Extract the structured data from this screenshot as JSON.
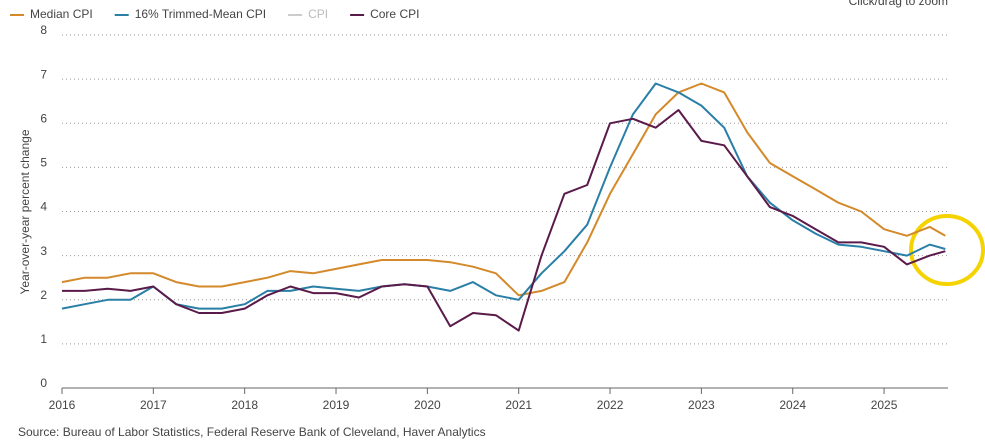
{
  "chart_data": {
    "type": "line",
    "zoom_hint": "Click/drag to zoom",
    "y_label": "Year-over-year percent change",
    "source": "Source: Bureau of Labor Statistics, Federal Reserve Bank of Cleveland, Haver Analytics",
    "x": [
      2016,
      2016.25,
      2016.5,
      2016.75,
      2017,
      2017.25,
      2017.5,
      2017.75,
      2018,
      2018.25,
      2018.5,
      2018.75,
      2019,
      2019.25,
      2019.5,
      2019.75,
      2020,
      2020.25,
      2020.5,
      2020.75,
      2021,
      2021.25,
      2021.5,
      2021.75,
      2022,
      2022.25,
      2022.5,
      2022.75,
      2023,
      2023.25,
      2023.5,
      2023.75,
      2024,
      2024.25,
      2024.5,
      2024.75,
      2025,
      2025.25,
      2025.5,
      2025.67
    ],
    "series": [
      {
        "name": "Median CPI",
        "color": "#d4892a",
        "values": [
          2.4,
          2.5,
          2.5,
          2.6,
          2.6,
          2.4,
          2.3,
          2.3,
          2.4,
          2.5,
          2.65,
          2.6,
          2.7,
          2.8,
          2.9,
          2.9,
          2.9,
          2.85,
          2.75,
          2.6,
          2.1,
          2.2,
          2.4,
          3.3,
          4.4,
          5.3,
          6.2,
          6.7,
          6.9,
          6.7,
          5.8,
          5.1,
          4.8,
          4.5,
          4.2,
          4.0,
          3.6,
          3.45,
          3.65,
          3.45
        ]
      },
      {
        "name": "16% Trimmed-Mean CPI",
        "color": "#2a7fa6",
        "values": [
          1.8,
          1.9,
          2.0,
          2.0,
          2.3,
          1.9,
          1.8,
          1.8,
          1.9,
          2.2,
          2.2,
          2.3,
          2.25,
          2.2,
          2.3,
          2.35,
          2.3,
          2.2,
          2.4,
          2.1,
          2.0,
          2.6,
          3.1,
          3.7,
          5.0,
          6.2,
          6.9,
          6.7,
          6.4,
          5.9,
          4.8,
          4.2,
          3.8,
          3.5,
          3.25,
          3.2,
          3.1,
          3.0,
          3.25,
          3.15
        ]
      },
      {
        "name": "CPI",
        "color": "#cccccc",
        "visible": false
      },
      {
        "name": "Core CPI",
        "color": "#5a1a4a",
        "values": [
          2.2,
          2.2,
          2.25,
          2.2,
          2.3,
          1.9,
          1.7,
          1.7,
          1.8,
          2.1,
          2.3,
          2.15,
          2.15,
          2.05,
          2.3,
          2.35,
          2.3,
          1.4,
          1.7,
          1.65,
          1.3,
          3.0,
          4.4,
          4.6,
          6.0,
          6.1,
          5.9,
          6.3,
          5.6,
          5.5,
          4.8,
          4.1,
          3.9,
          3.6,
          3.3,
          3.3,
          3.2,
          2.8,
          3.0,
          3.1
        ]
      }
    ],
    "xlim": [
      2016,
      2025.7
    ],
    "xticks": [
      2016,
      2017,
      2018,
      2019,
      2020,
      2021,
      2022,
      2023,
      2024,
      2025
    ],
    "ylim": [
      0,
      8
    ],
    "yticks": [
      0,
      1,
      2,
      3,
      4,
      5,
      6,
      7,
      8
    ],
    "grid": true
  }
}
